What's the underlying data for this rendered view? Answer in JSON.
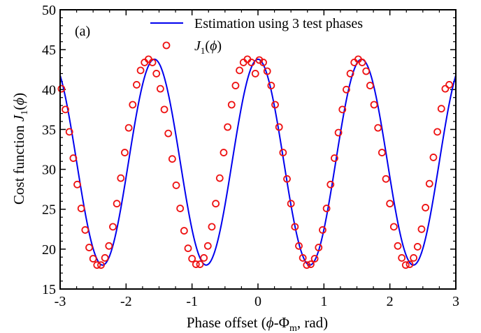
{
  "chart_data": {
    "type": "line",
    "panel_label": "(a)",
    "xlabel": {
      "prefix": "Phase offset (",
      "phi": "ϕ",
      "dash": "-Φ",
      "sub": "m",
      "suffix": ", rad)"
    },
    "ylabel": {
      "prefix": "Cost function ",
      "J": "J",
      "sub": "1",
      "open": "(",
      "phi": "ϕ",
      "close": ")"
    },
    "xlim": [
      -3,
      3
    ],
    "ylim": [
      15,
      50
    ],
    "x_ticks": [
      -3,
      -2,
      -1,
      0,
      1,
      2,
      3
    ],
    "x_tick_labels": [
      "-3",
      "-2",
      "-1",
      "0",
      "1",
      "2",
      "3"
    ],
    "y_ticks": [
      15,
      20,
      25,
      30,
      35,
      40,
      45,
      50
    ],
    "y_tick_labels": [
      "15",
      "20",
      "25",
      "30",
      "35",
      "40",
      "45",
      "50"
    ],
    "grid": false,
    "legend_position": "top-right",
    "series": [
      {
        "kind": "line",
        "color": "#0000ee",
        "legend": {
          "text": "Estimation using 3 test phases"
        },
        "model": {
          "offset": 30.9,
          "amplitude": 12.9,
          "frequency": 4,
          "phase_shift": 0
        },
        "x_range": [
          -3,
          3
        ]
      },
      {
        "kind": "scatter",
        "marker": "open-circle",
        "color": "#ee1111",
        "legend": {
          "J": "J",
          "sub": "1",
          "open": "(",
          "phi": "ϕ",
          "close": ")"
        },
        "points": [
          [
            -2.98,
            40.1
          ],
          [
            -2.92,
            37.5
          ],
          [
            -2.86,
            34.7
          ],
          [
            -2.8,
            31.4
          ],
          [
            -2.74,
            28.1
          ],
          [
            -2.68,
            25.1
          ],
          [
            -2.62,
            22.4
          ],
          [
            -2.56,
            20.2
          ],
          [
            -2.5,
            18.8
          ],
          [
            -2.44,
            18.0
          ],
          [
            -2.38,
            18.0
          ],
          [
            -2.32,
            18.9
          ],
          [
            -2.26,
            20.4
          ],
          [
            -2.2,
            22.8
          ],
          [
            -2.14,
            25.7
          ],
          [
            -2.08,
            28.9
          ],
          [
            -2.02,
            32.1
          ],
          [
            -1.96,
            35.2
          ],
          [
            -1.9,
            38.1
          ],
          [
            -1.84,
            40.6
          ],
          [
            -1.78,
            42.4
          ],
          [
            -1.72,
            43.4
          ],
          [
            -1.66,
            43.8
          ],
          [
            -1.6,
            43.4
          ],
          [
            -1.54,
            42.0
          ],
          [
            -1.48,
            40.1
          ],
          [
            -1.42,
            37.5
          ],
          [
            -1.36,
            34.5
          ],
          [
            -1.3,
            31.3
          ],
          [
            -1.24,
            28.0
          ],
          [
            -1.18,
            25.1
          ],
          [
            -1.12,
            22.3
          ],
          [
            -1.06,
            20.1
          ],
          [
            -1.0,
            18.8
          ],
          [
            -0.94,
            18.1
          ],
          [
            -0.88,
            18.1
          ],
          [
            -0.82,
            18.9
          ],
          [
            -0.76,
            20.4
          ],
          [
            -0.7,
            22.8
          ],
          [
            -0.64,
            25.7
          ],
          [
            -0.58,
            28.9
          ],
          [
            -0.52,
            32.1
          ],
          [
            -0.46,
            35.3
          ],
          [
            -0.4,
            38.1
          ],
          [
            -0.34,
            40.5
          ],
          [
            -0.28,
            42.4
          ],
          [
            -0.22,
            43.4
          ],
          [
            -0.16,
            43.8
          ],
          [
            -0.1,
            43.4
          ],
          [
            -0.04,
            42.0
          ],
          [
            0.02,
            43.7
          ],
          [
            0.08,
            43.4
          ],
          [
            0.14,
            42.3
          ],
          [
            0.2,
            40.5
          ],
          [
            0.26,
            38.1
          ],
          [
            0.32,
            35.3
          ],
          [
            0.38,
            32.1
          ],
          [
            0.44,
            28.8
          ],
          [
            0.5,
            25.7
          ],
          [
            0.56,
            22.8
          ],
          [
            0.62,
            20.4
          ],
          [
            0.68,
            18.9
          ],
          [
            0.74,
            18.0
          ],
          [
            0.8,
            18.1
          ],
          [
            0.86,
            18.8
          ],
          [
            0.92,
            20.2
          ],
          [
            0.98,
            22.4
          ],
          [
            1.04,
            25.1
          ],
          [
            1.1,
            28.1
          ],
          [
            1.16,
            31.4
          ],
          [
            1.22,
            34.6
          ],
          [
            1.28,
            37.5
          ],
          [
            1.34,
            40.0
          ],
          [
            1.4,
            42.0
          ],
          [
            1.46,
            43.4
          ],
          [
            1.52,
            43.8
          ],
          [
            1.58,
            43.4
          ],
          [
            1.64,
            42.3
          ],
          [
            1.7,
            40.5
          ],
          [
            1.76,
            38.1
          ],
          [
            1.82,
            35.2
          ],
          [
            1.88,
            32.1
          ],
          [
            1.94,
            28.8
          ],
          [
            2.0,
            25.7
          ],
          [
            2.06,
            22.8
          ],
          [
            2.12,
            20.4
          ],
          [
            2.18,
            18.9
          ],
          [
            2.24,
            18.0
          ],
          [
            2.3,
            18.1
          ],
          [
            2.36,
            18.9
          ],
          [
            2.42,
            20.3
          ],
          [
            2.48,
            22.5
          ],
          [
            2.54,
            25.2
          ],
          [
            2.6,
            28.2
          ],
          [
            2.66,
            31.5
          ],
          [
            2.72,
            34.7
          ],
          [
            2.78,
            37.6
          ],
          [
            2.84,
            40.1
          ],
          [
            2.9,
            40.6
          ]
        ]
      }
    ]
  }
}
